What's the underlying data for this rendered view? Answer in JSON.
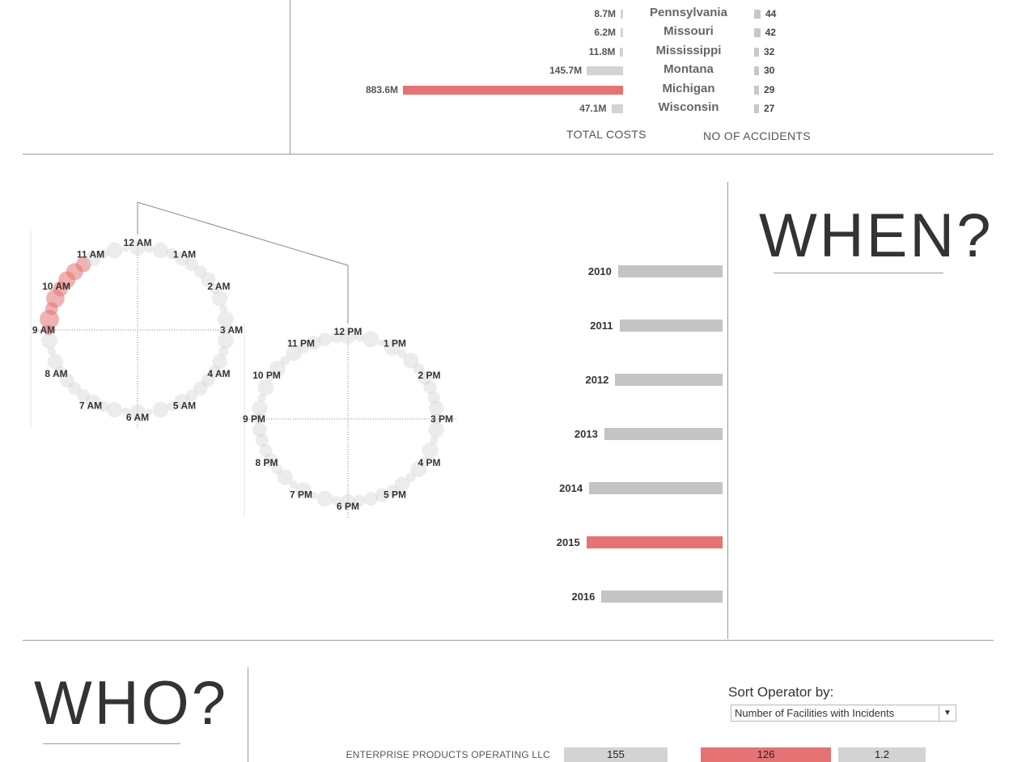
{
  "colors": {
    "highlight": "#e57373",
    "bar": "#c4c4c4",
    "rule": "#9a9a9a"
  },
  "where": {
    "states": [
      {
        "name": "Pennsylvania",
        "cost": "8.7M",
        "cost_value": 8.7,
        "accidents": "44",
        "highlight": false
      },
      {
        "name": "Missouri",
        "cost": "6.2M",
        "cost_value": 6.2,
        "accidents": "42",
        "highlight": false
      },
      {
        "name": "Mississippi",
        "cost": "11.8M",
        "cost_value": 11.8,
        "accidents": "32",
        "highlight": false
      },
      {
        "name": "Montana",
        "cost": "145.7M",
        "cost_value": 145.7,
        "accidents": "30",
        "highlight": false
      },
      {
        "name": "Michigan",
        "cost": "883.6M",
        "cost_value": 883.6,
        "accidents": "29",
        "highlight": true
      },
      {
        "name": "Wisconsin",
        "cost": "47.1M",
        "cost_value": 47.1,
        "accidents": "27",
        "highlight": false
      }
    ],
    "total_costs_header": "TOTAL COSTS",
    "accidents_header": "NO OF ACCIDENTS"
  },
  "when": {
    "title": "WHEN?",
    "am_labels": [
      "12 AM",
      "1 AM",
      "2 AM",
      "3 AM",
      "4 AM",
      "5 AM",
      "6 AM",
      "7 AM",
      "8 AM",
      "9 AM",
      "10 AM",
      "11 AM"
    ],
    "pm_labels": [
      "12 PM",
      "1 PM",
      "2 PM",
      "3 PM",
      "4 PM",
      "5 PM",
      "6 PM",
      "7 PM",
      "8 PM",
      "9 PM",
      "10 PM",
      "11 PM"
    ],
    "highlight_hours": [
      "9 AM",
      "10 AM"
    ],
    "years": [
      {
        "year": "2010",
        "level": 0.76,
        "highlight": false
      },
      {
        "year": "2011",
        "level": 0.75,
        "highlight": false
      },
      {
        "year": "2012",
        "level": 0.78,
        "highlight": false
      },
      {
        "year": "2013",
        "level": 0.86,
        "highlight": false
      },
      {
        "year": "2014",
        "level": 0.97,
        "highlight": false
      },
      {
        "year": "2015",
        "level": 0.99,
        "highlight": true
      },
      {
        "year": "2016",
        "level": 0.88,
        "highlight": false
      }
    ]
  },
  "who": {
    "title": "WHO?",
    "sort_label": "Sort Operator by:",
    "sort_value": "Number of Facilities with Incidents",
    "operators": [
      {
        "name": "ENTERPRISE PRODUCTS OPERATING LLC",
        "v1": "155",
        "v2": "126",
        "v3": "1.2"
      }
    ]
  }
}
